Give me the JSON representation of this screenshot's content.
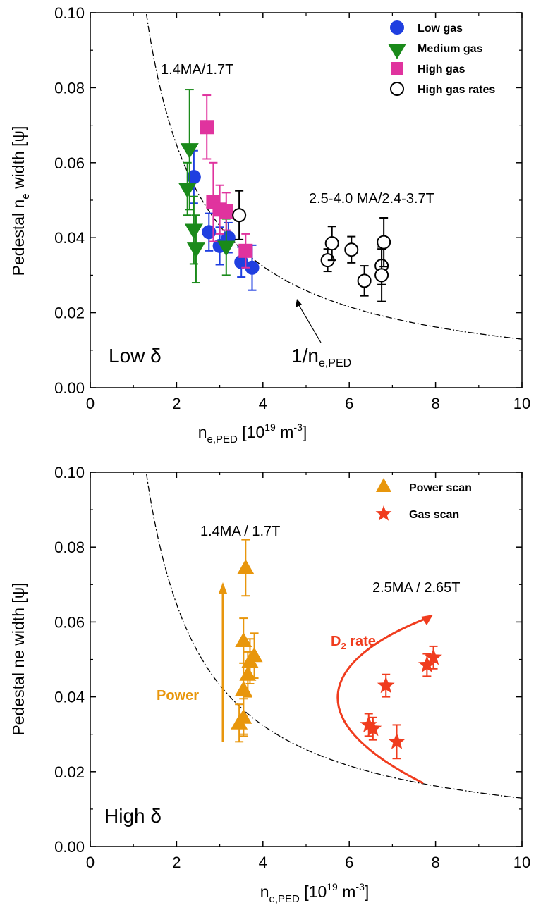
{
  "chart_data": [
    {
      "type": "scatter",
      "xlabel_main": "n",
      "xlabel_sub": "e,PED",
      "xlabel_unit_pre": " [10",
      "xlabel_unit_exp": "19",
      "xlabel_unit_mid": " m",
      "xlabel_unit_exp2": "-3",
      "xlabel_unit_post": "]",
      "ylabel_pre": "Pedestal n",
      "ylabel_sub": "e",
      "ylabel_post": " width [ψ]",
      "xlim": [
        0,
        10
      ],
      "ylim": [
        0,
        0.1
      ],
      "xticks": [
        "0",
        "2",
        "4",
        "6",
        "8",
        "10"
      ],
      "yticks": [
        "0.00",
        "0.02",
        "0.04",
        "0.06",
        "0.08",
        "0.10"
      ],
      "legend_position": "top-right",
      "curve": {
        "type": "1/x",
        "k": 0.1295,
        "x_from": 1.3,
        "x_to": 10,
        "label_main": "1/n",
        "label_sub": "e,PED"
      },
      "annotations": {
        "a1": "1.4MA/1.7T",
        "a2": "2.5-4.0 MA/2.4-3.7T",
        "delta": "Low δ"
      },
      "series": [
        {
          "name": "Low gas",
          "marker": "circle",
          "color": "#1f3fe0",
          "points": [
            [
              2.4,
              0.0562,
              0.007
            ],
            [
              2.75,
              0.0415,
              0.005
            ],
            [
              3.0,
              0.0378,
              0.005
            ],
            [
              3.2,
              0.04,
              0.004
            ],
            [
              3.5,
              0.0335,
              0.004
            ],
            [
              3.75,
              0.032,
              0.006
            ]
          ]
        },
        {
          "name": "Medium gas",
          "marker": "triangle-down",
          "color": "#1a8a1a",
          "points": [
            [
              2.25,
              0.053,
              0.007
            ],
            [
              2.3,
              0.0635,
              0.016
            ],
            [
              2.4,
              0.042,
              0.009
            ],
            [
              2.45,
              0.037,
              0.009
            ],
            [
              3.15,
              0.0375,
              0.0075
            ]
          ]
        },
        {
          "name": "High gas",
          "marker": "square",
          "color": "#e0339e",
          "points": [
            [
              2.7,
              0.0695,
              0.0085
            ],
            [
              2.85,
              0.0495,
              0.0105
            ],
            [
              3.0,
              0.0475,
              0.0065
            ],
            [
              3.15,
              0.047,
              0.005
            ],
            [
              3.6,
              0.0365,
              0.0045
            ]
          ]
        },
        {
          "name": "High gas rates",
          "marker": "open-circle",
          "color": "#000000",
          "points": [
            [
              3.45,
              0.046,
              0.0065
            ],
            [
              5.5,
              0.034,
              0.003
            ],
            [
              5.6,
              0.0385,
              0.0045
            ],
            [
              6.05,
              0.0368,
              0.0035
            ],
            [
              6.35,
              0.0285,
              0.004
            ],
            [
              6.75,
              0.0325,
              0.005
            ],
            [
              6.75,
              0.03,
              0.007
            ],
            [
              6.8,
              0.0388,
              0.0065
            ]
          ]
        }
      ]
    },
    {
      "type": "scatter",
      "xlabel_main": "n",
      "xlabel_sub": "e,PED",
      "xlabel_unit_pre": " [10",
      "xlabel_unit_exp": "19",
      "xlabel_unit_mid": " m",
      "xlabel_unit_exp2": "-3",
      "xlabel_unit_post": "]",
      "ylabel": "Pedestal ne width [ψ]",
      "xlim": [
        0,
        10
      ],
      "ylim": [
        0,
        0.1
      ],
      "xticks": [
        "0",
        "2",
        "4",
        "6",
        "8",
        "10"
      ],
      "yticks": [
        "0.00",
        "0.02",
        "0.04",
        "0.06",
        "0.08",
        "0.10"
      ],
      "legend_position": "top-right",
      "curve": {
        "type": "1/x",
        "k": 0.1295,
        "x_from": 1.3,
        "x_to": 10
      },
      "annotations": {
        "a1": "1.4MA / 1.7T",
        "a2": "2.5MA / 2.65T",
        "power": "Power",
        "d2_main": "D",
        "d2_sub": "2",
        "d2_post": " rate",
        "delta": "High δ"
      },
      "series": [
        {
          "name": "Power scan",
          "marker": "triangle-up",
          "color": "#e8960c",
          "points": [
            [
              3.45,
              0.033,
              0.005
            ],
            [
              3.55,
              0.0345,
              0.005
            ],
            [
              3.55,
              0.042,
              0.012
            ],
            [
              3.6,
              0.0745,
              0.0075
            ],
            [
              3.55,
              0.055,
              0.006
            ],
            [
              3.65,
              0.046,
              0.006
            ],
            [
              3.7,
              0.0495,
              0.006
            ],
            [
              3.8,
              0.051,
              0.006
            ]
          ]
        },
        {
          "name": "Gas scan",
          "marker": "star",
          "color": "#f03c1e",
          "points": [
            [
              6.45,
              0.0325,
              0.003
            ],
            [
              6.55,
              0.0315,
              0.003
            ],
            [
              6.85,
              0.043,
              0.003
            ],
            [
              7.1,
              0.028,
              0.0045
            ],
            [
              7.8,
              0.0485,
              0.003
            ],
            [
              7.95,
              0.0505,
              0.003
            ]
          ]
        }
      ]
    }
  ]
}
